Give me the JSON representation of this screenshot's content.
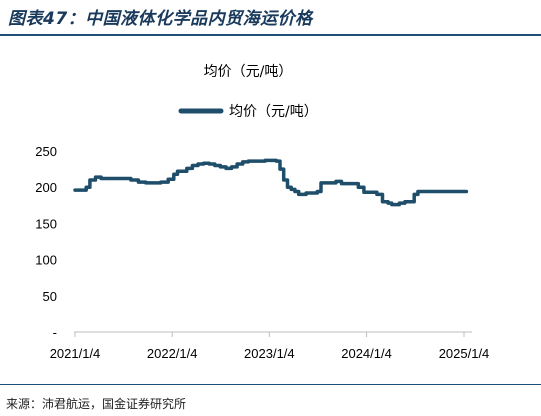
{
  "figure": {
    "title": "图表47：中国液体化学品内贸海运价格",
    "source": "来源：沛君航运，国金证券研究所"
  },
  "colors": {
    "series": "#1f4e6b",
    "axis": "#bfbfbf",
    "rule": "#1f4e79"
  },
  "chart_data": {
    "type": "line",
    "title": "均价（元/吨）",
    "legend": [
      "均价（元/吨）"
    ],
    "legend_position": "top",
    "grid": false,
    "xlabel": "",
    "ylabel": "",
    "ylim": [
      0,
      250
    ],
    "y_ticks": [
      0,
      50,
      100,
      150,
      200,
      250
    ],
    "y_tick_labels": [
      "-",
      "50",
      "100",
      "150",
      "200",
      "250"
    ],
    "x_ticks": [
      "2021/1/4",
      "2022/1/4",
      "2023/1/4",
      "2024/1/4",
      "2025/1/4"
    ],
    "series": [
      {
        "name": "均价（元/吨）",
        "x": [
          "2021-01-04",
          "2021-02-01",
          "2021-02-15",
          "2021-03-01",
          "2021-03-22",
          "2021-04-12",
          "2021-05-10",
          "2021-06-07",
          "2021-07-05",
          "2021-08-02",
          "2021-08-30",
          "2021-09-13",
          "2021-09-27",
          "2021-10-25",
          "2021-11-22",
          "2021-12-20",
          "2022-01-10",
          "2022-01-24",
          "2022-02-14",
          "2022-02-28",
          "2022-03-21",
          "2022-04-11",
          "2022-05-02",
          "2022-05-23",
          "2022-06-13",
          "2022-07-04",
          "2022-07-25",
          "2022-08-15",
          "2022-09-05",
          "2022-09-26",
          "2022-10-17",
          "2022-11-07",
          "2022-11-28",
          "2022-12-19",
          "2023-01-09",
          "2023-01-30",
          "2023-02-13",
          "2023-02-27",
          "2023-03-13",
          "2023-03-27",
          "2023-04-10",
          "2023-04-24",
          "2023-05-08",
          "2023-05-22",
          "2023-06-05",
          "2023-06-19",
          "2023-07-03",
          "2023-07-17",
          "2023-07-31",
          "2023-08-21",
          "2023-09-11",
          "2023-10-02",
          "2023-10-23",
          "2023-11-06",
          "2023-11-13",
          "2023-12-04",
          "2023-12-25",
          "2024-01-08",
          "2024-01-22",
          "2024-02-12",
          "2024-03-04",
          "2024-03-25",
          "2024-04-08",
          "2024-04-15",
          "2024-05-06",
          "2024-05-27",
          "2024-06-17",
          "2024-07-01",
          "2024-07-15",
          "2024-07-29",
          "2024-08-12",
          "2024-08-26",
          "2024-09-09",
          "2024-09-23",
          "2024-10-07",
          "2024-10-21",
          "2024-11-04",
          "2024-11-18",
          "2024-12-02",
          "2024-12-16",
          "2024-12-23",
          "2025-01-04",
          "2025-01-13"
        ],
        "y": [
          196,
          196,
          200,
          210,
          214,
          212,
          212,
          212,
          212,
          210,
          207,
          207,
          206,
          206,
          207,
          211,
          218,
          222,
          222,
          226,
          230,
          232,
          233,
          232,
          230,
          228,
          226,
          228,
          232,
          235,
          236,
          236,
          236,
          237,
          237,
          236,
          225,
          210,
          200,
          197,
          194,
          190,
          190,
          192,
          192,
          192,
          194,
          206,
          206,
          206,
          208,
          205,
          205,
          205,
          205,
          200,
          193,
          193,
          193,
          190,
          180,
          178,
          176,
          176,
          178,
          180,
          180,
          190,
          194,
          194,
          194,
          194,
          194,
          194,
          194,
          194,
          194,
          194,
          194,
          194,
          194,
          194,
          194
        ]
      }
    ]
  }
}
